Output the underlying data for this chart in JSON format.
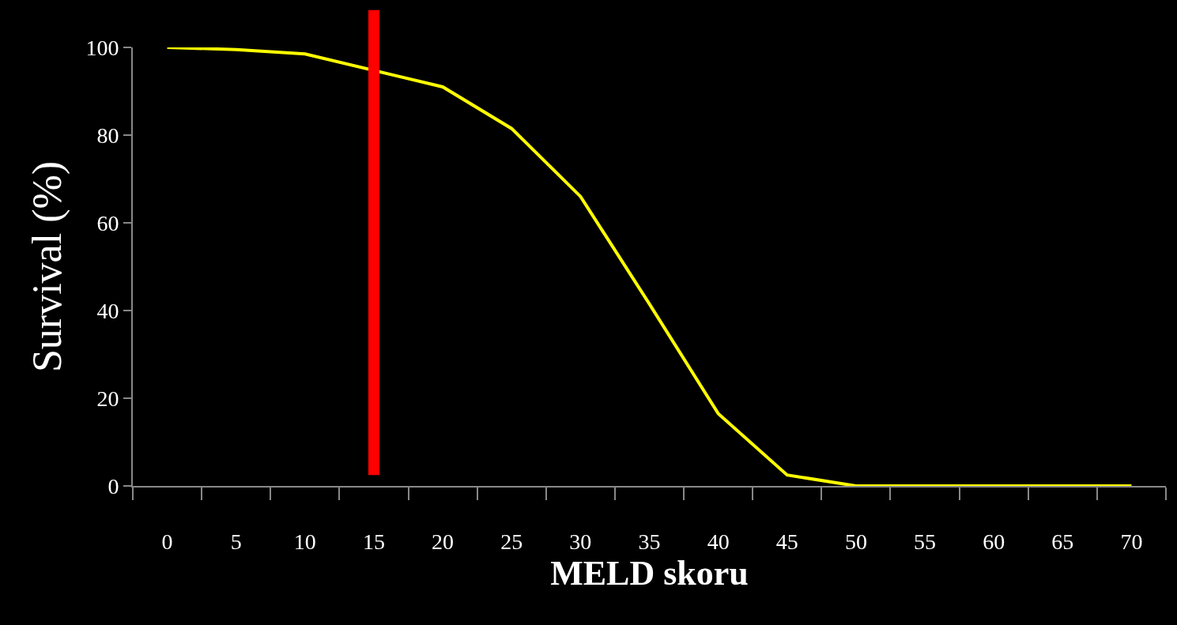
{
  "chart_data": {
    "type": "line",
    "xlabel": "MELD skoru",
    "ylabel": "Survival (%)",
    "x": [
      0,
      5,
      10,
      15,
      20,
      25,
      30,
      35,
      40,
      45,
      50,
      55,
      60,
      65,
      70
    ],
    "series": [
      {
        "color": "#ffff00",
        "values": [
          100,
          99.5,
          98.5,
          null,
          91,
          81.5,
          66,
          41.5,
          16.5,
          2.5,
          0,
          0,
          0,
          0,
          0
        ]
      }
    ],
    "xlim": [
      -2.5,
      72.5
    ],
    "xticks": [
      0,
      5,
      10,
      15,
      20,
      25,
      30,
      35,
      40,
      45,
      50,
      55,
      60,
      65,
      70
    ],
    "ylim": [
      0,
      100
    ],
    "yticks": [
      0,
      20,
      40,
      60,
      80,
      100
    ],
    "ref_lines": [
      {
        "axis": "x",
        "value": 15,
        "color": "#ff0000"
      }
    ],
    "line_style": "solid"
  }
}
